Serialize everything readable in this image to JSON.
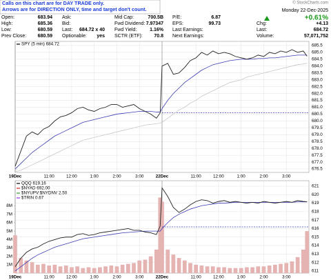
{
  "header": {
    "notice": [
      "Calls on this chart are for DAY TRADE only.",
      "Arrows are for DIRECTION ONLY, time and target don't count."
    ],
    "watermark": "© StockCharts.com",
    "date": "Monday 22-Dec-2025",
    "change_pct": "+0.61%",
    "columns": [
      [
        {
          "label": "Open:",
          "value": "683.94"
        },
        {
          "label": "High:",
          "value": "685.36"
        },
        {
          "label": "Low:",
          "value": "680.59"
        },
        {
          "label": "Prev Close:",
          "value": "680.59"
        }
      ],
      [
        {
          "label": "Ask:"
        },
        {
          "label": "Bid:"
        },
        {
          "label": "Last:",
          "value": "684.72 x 40"
        },
        {
          "label": "Optionable:",
          "value": "yes"
        }
      ],
      [
        {
          "label": "Mid Cap:",
          "value": "700.5B"
        },
        {
          "label": "Fwd Dividend:",
          "value": "7.97347"
        },
        {
          "label": "Fwd Yield:",
          "value": "1.16%"
        },
        {
          "label": "SCTR (ETF):",
          "value": "70.8"
        }
      ],
      [
        {
          "label": "P/E:",
          "value": "6.87"
        },
        {
          "label": "EPS:",
          "value": "99.73"
        },
        {
          "label": "Last Earnings:"
        },
        {
          "label": "Next Earnings:"
        }
      ],
      [
        {
          "label": "Chg:",
          "value": "+4.13"
        },
        {
          "label": "Last:",
          "value": "684.72"
        },
        {
          "label": "Volume:",
          "value": "57,071,752"
        }
      ]
    ]
  },
  "chart_data": [
    {
      "type": "line",
      "legend": [
        {
          "label": "SPY (5 min) 684.72",
          "color": "#000000"
        }
      ],
      "x": [
        0,
        3,
        6,
        9,
        12,
        15,
        18,
        21,
        24,
        27,
        30,
        33,
        36,
        39,
        42,
        45,
        48,
        51,
        54,
        57,
        60,
        63,
        66,
        69,
        72,
        75,
        77,
        78,
        81,
        84,
        87,
        90,
        93,
        96,
        99,
        102,
        105,
        108,
        111,
        114,
        117,
        120,
        123,
        126,
        129,
        132,
        135,
        138,
        141,
        144,
        147,
        150,
        153,
        155
      ],
      "xlim": [
        0,
        156
      ],
      "xticks": [
        {
          "value": 0,
          "label": "19Dec"
        },
        {
          "value": 18,
          "label": "11:00"
        },
        {
          "value": 30,
          "label": "12:00"
        },
        {
          "value": 42,
          "label": "1:00"
        },
        {
          "value": 54,
          "label": "2:00"
        },
        {
          "value": 66,
          "label": "3:00"
        },
        {
          "value": 78,
          "label": "22Dec"
        },
        {
          "value": 96,
          "label": "11:00"
        },
        {
          "value": 108,
          "label": "12:00"
        },
        {
          "value": 120,
          "label": "1:00"
        },
        {
          "value": 132,
          "label": "2:00"
        },
        {
          "value": 144,
          "label": "3:00"
        }
      ],
      "ylim": [
        676.25,
        685.8
      ],
      "yticks": [
        676.5,
        {
          "value": 677,
          "label": "677.0"
        },
        677.5,
        {
          "value": 678,
          "label": "678.0"
        },
        678.5,
        {
          "value": 679,
          "label": "679.0"
        },
        679.5,
        {
          "value": 680,
          "label": "680.0"
        },
        680.5,
        {
          "value": 681,
          "label": "681.0"
        },
        681.5,
        {
          "value": 682,
          "label": "682.0"
        },
        682.5,
        {
          "value": 683,
          "label": "683.0"
        },
        683.5,
        {
          "value": 684,
          "label": "684.0"
        },
        684.5,
        {
          "value": 685,
          "label": "685.0"
        },
        685.5
      ],
      "grid": true,
      "reference_line": {
        "value": 680.59,
        "start_x": 78,
        "color": "#3b3bb3"
      },
      "series": [
        {
          "color": "#222222",
          "values": [
            676.7,
            677.8,
            678.9,
            679.2,
            679.0,
            679.4,
            679.6,
            680.0,
            680.3,
            680.4,
            680.6,
            680.9,
            681.0,
            680.8,
            680.7,
            680.9,
            681.0,
            681.2,
            681.2,
            681.0,
            681.1,
            681.2,
            680.9,
            680.7,
            680.5,
            680.2,
            680.59,
            684.0,
            684.2,
            683.4,
            683.5,
            683.9,
            684.4,
            684.6,
            685.0,
            684.8,
            685.1,
            684.9,
            685.0,
            684.9,
            684.7,
            684.6,
            684.5,
            684.6,
            684.8,
            684.7,
            685.0,
            684.9,
            685.1,
            685.0,
            685.2,
            685.0,
            685.1,
            684.72
          ]
        },
        {
          "color": "#3b3bb3",
          "values": [
            676.5,
            676.9,
            677.3,
            677.7,
            678.0,
            678.3,
            678.6,
            678.9,
            679.1,
            679.3,
            679.5,
            679.7,
            679.9,
            680.0,
            680.1,
            680.2,
            680.3,
            680.4,
            680.5,
            680.55,
            680.6,
            680.65,
            680.7,
            680.7,
            680.7,
            680.65,
            680.65,
            680.9,
            681.5,
            682.0,
            682.4,
            682.8,
            683.1,
            683.4,
            683.7,
            683.9,
            684.1,
            684.2,
            684.3,
            684.4,
            684.45,
            684.5,
            684.5,
            684.5,
            684.55,
            684.55,
            684.6,
            684.6,
            684.65,
            684.7,
            684.75,
            684.8,
            684.8,
            684.8
          ]
        },
        {
          "color": "#c8c8c8",
          "values": [
            676.3,
            676.4,
            676.6,
            676.8,
            677.0,
            677.2,
            677.4,
            677.6,
            677.8,
            678.0,
            678.2,
            678.4,
            678.6,
            678.7,
            678.8,
            678.9,
            679.0,
            679.1,
            679.2,
            679.3,
            679.4,
            679.5,
            679.6,
            679.7,
            679.75,
            679.8,
            679.85,
            679.9,
            680.2,
            680.5,
            680.8,
            681.0,
            681.3,
            681.5,
            681.8,
            682.0,
            682.2,
            682.4,
            682.6,
            682.8,
            682.9,
            683.0,
            683.2,
            683.3,
            683.4,
            683.5,
            683.6,
            683.7,
            683.8,
            683.9,
            684.0,
            684.1,
            684.15,
            684.2
          ]
        }
      ]
    },
    {
      "type": "line",
      "legend": [
        {
          "label": "QQQ 619.16",
          "color": "#000000"
        },
        {
          "label": "$NYAD 692.00",
          "color": "#d62020"
        },
        {
          "label": "$NYUPV:$NYDNV 2.50",
          "color": "#2a9a2a"
        },
        {
          "label": "$TRIN 0.67",
          "color": "#8a2be2"
        }
      ],
      "x": [
        0,
        3,
        6,
        9,
        12,
        15,
        18,
        21,
        24,
        27,
        30,
        33,
        36,
        39,
        42,
        45,
        48,
        51,
        54,
        57,
        60,
        63,
        66,
        69,
        72,
        75,
        77,
        78,
        81,
        84,
        87,
        90,
        93,
        96,
        99,
        102,
        105,
        108,
        111,
        114,
        117,
        120,
        123,
        126,
        129,
        132,
        135,
        138,
        141,
        144,
        147,
        150,
        153,
        155
      ],
      "xlim": [
        0,
        156
      ],
      "xticks": [
        {
          "value": 0,
          "label": "19Dec"
        },
        {
          "value": 18,
          "label": "11:00"
        },
        {
          "value": 30,
          "label": "12:00"
        },
        {
          "value": 42,
          "label": "1:00"
        },
        {
          "value": 54,
          "label": "2:00"
        },
        {
          "value": 66,
          "label": "3:00"
        },
        {
          "value": 78,
          "label": "22Dec"
        },
        {
          "value": 96,
          "label": "11:00"
        },
        {
          "value": 108,
          "label": "12:00"
        },
        {
          "value": 120,
          "label": "1:00"
        },
        {
          "value": 132,
          "label": "2:00"
        },
        {
          "value": 144,
          "label": "3:00"
        }
      ],
      "ylim": [
        610.75,
        621.65
      ],
      "yticks": [
        611,
        612,
        613,
        614,
        615,
        616,
        617,
        618,
        619,
        620,
        621
      ],
      "y2lim": [
        0,
        11000000
      ],
      "y2ticks": [
        {
          "value": 1000000,
          "label": "1M"
        },
        {
          "value": 2000000,
          "label": "2M"
        },
        {
          "value": 3000000,
          "label": "3M"
        },
        {
          "value": 4000000,
          "label": "4M"
        },
        {
          "value": 5000000,
          "label": "5M"
        },
        {
          "value": 6000000,
          "label": "6M"
        },
        {
          "value": 7000000,
          "label": "7M"
        },
        {
          "value": 8000000,
          "label": "8M"
        }
      ],
      "grid": true,
      "reference_line": {
        "value": 616.2,
        "start_x": 78,
        "color": "#3b3bb3"
      },
      "series": [
        {
          "type": "bar",
          "axis": "y2",
          "color": "#e6b3b3",
          "values": [
            4500000,
            1800000,
            1500000,
            1300000,
            1000000,
            1100000,
            900000,
            1000000,
            800000,
            900000,
            700000,
            800000,
            600000,
            700000,
            600000,
            700000,
            800000,
            900000,
            800000,
            1000000,
            1100000,
            1200000,
            1500000,
            1600000,
            2000000,
            2800000,
            9000000,
            8500000,
            2800000,
            2200000,
            1800000,
            1500000,
            1200000,
            1000000,
            900000,
            800000,
            800000,
            700000,
            700000,
            600000,
            600000,
            600000,
            700000,
            700000,
            800000,
            800000,
            900000,
            1000000,
            1100000,
            1200000,
            1400000,
            1900000,
            2800000,
            5000000
          ]
        },
        {
          "color": "#222222",
          "values": [
            611.5,
            612.5,
            613.2,
            613.6,
            613.8,
            614.2,
            614.5,
            614.7,
            614.9,
            615.0,
            615.0,
            615.3,
            615.4,
            615.2,
            615.3,
            615.5,
            615.6,
            615.7,
            615.8,
            615.9,
            616.0,
            615.8,
            615.8,
            615.6,
            615.5,
            615.3,
            616.3,
            620.8,
            619.8,
            618.5,
            617.9,
            618.3,
            618.8,
            619.2,
            619.4,
            619.3,
            619.0,
            619.2,
            619.3,
            619.1,
            619.2,
            619.1,
            619.0,
            619.1,
            619.0,
            619.2,
            619.1,
            619.0,
            619.1,
            619.2,
            619.1,
            619.3,
            619.2,
            619.16
          ]
        },
        {
          "color": "#3b3bb3",
          "values": [
            611.0,
            611.5,
            612.0,
            612.5,
            612.9,
            613.2,
            613.5,
            613.8,
            614.0,
            614.2,
            614.4,
            614.6,
            614.8,
            614.9,
            615.0,
            615.1,
            615.2,
            615.3,
            615.4,
            615.5,
            615.55,
            615.6,
            615.65,
            615.7,
            615.7,
            615.7,
            615.7,
            616.0,
            616.7,
            617.3,
            617.7,
            618.0,
            618.3,
            618.5,
            618.7,
            618.8,
            618.9,
            619.0,
            619.0,
            619.05,
            619.1,
            619.1,
            619.1,
            619.1,
            619.1,
            619.1,
            619.1,
            619.1,
            619.1,
            619.1,
            619.1,
            619.15,
            619.15,
            619.15
          ]
        }
      ]
    }
  ]
}
